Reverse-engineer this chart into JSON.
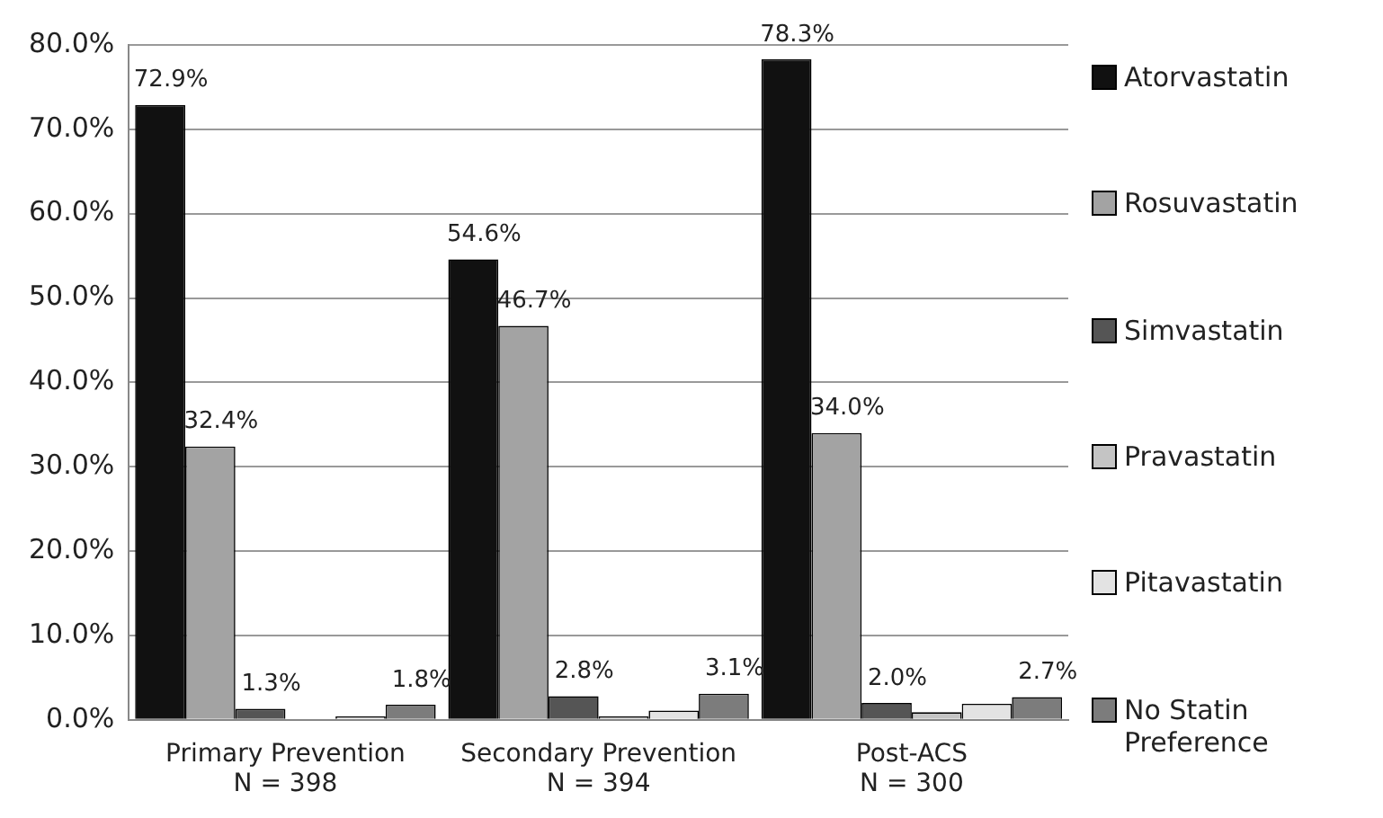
{
  "chart_data": {
    "type": "bar",
    "categories": [
      "Primary Prevention\nN = 398",
      "Secondary Prevention\nN = 394",
      "Post-ACS\nN = 300"
    ],
    "series": [
      {
        "name": "Atorvastatin",
        "color": "#111111",
        "values": [
          72.9,
          54.6,
          78.3
        ],
        "value_labels": [
          "72.9%",
          "54.6%",
          "78.3%"
        ]
      },
      {
        "name": "Rosuvastatin",
        "color": "#a3a3a3",
        "values": [
          32.4,
          46.7,
          34.0
        ],
        "value_labels": [
          "32.4%",
          "46.7%",
          "34.0%"
        ]
      },
      {
        "name": "Simvastatin",
        "color": "#555555",
        "values": [
          1.3,
          2.8,
          2.0
        ],
        "value_labels": [
          "1.3%",
          "2.8%",
          "2.0%"
        ]
      },
      {
        "name": "Pravastatin",
        "color": "#c4c4c4",
        "values": [
          0,
          0.4,
          0.9
        ]
      },
      {
        "name": "Pitavastatin",
        "color": "#e3e3e3",
        "values": [
          0.4,
          1.1,
          1.9
        ]
      },
      {
        "name": "No Statin Preference",
        "color": "#7c7c7c",
        "values": [
          1.8,
          3.1,
          2.7
        ],
        "value_labels": [
          "1.8%",
          "3.1%",
          "2.7%"
        ]
      }
    ],
    "ylim": [
      0,
      80
    ],
    "yticks": [
      {
        "value": 0,
        "label": "0.0%"
      },
      {
        "value": 10,
        "label": "10.0%"
      },
      {
        "value": 20,
        "label": "20.0%"
      },
      {
        "value": 30,
        "label": "30.0%"
      },
      {
        "value": 40,
        "label": "40.0%"
      },
      {
        "value": 50,
        "label": "50.0%"
      },
      {
        "value": 60,
        "label": "60.0%"
      },
      {
        "value": 70,
        "label": "70.0%"
      },
      {
        "value": 80,
        "label": "80.0%"
      }
    ],
    "grid": "y",
    "legend": "right"
  }
}
